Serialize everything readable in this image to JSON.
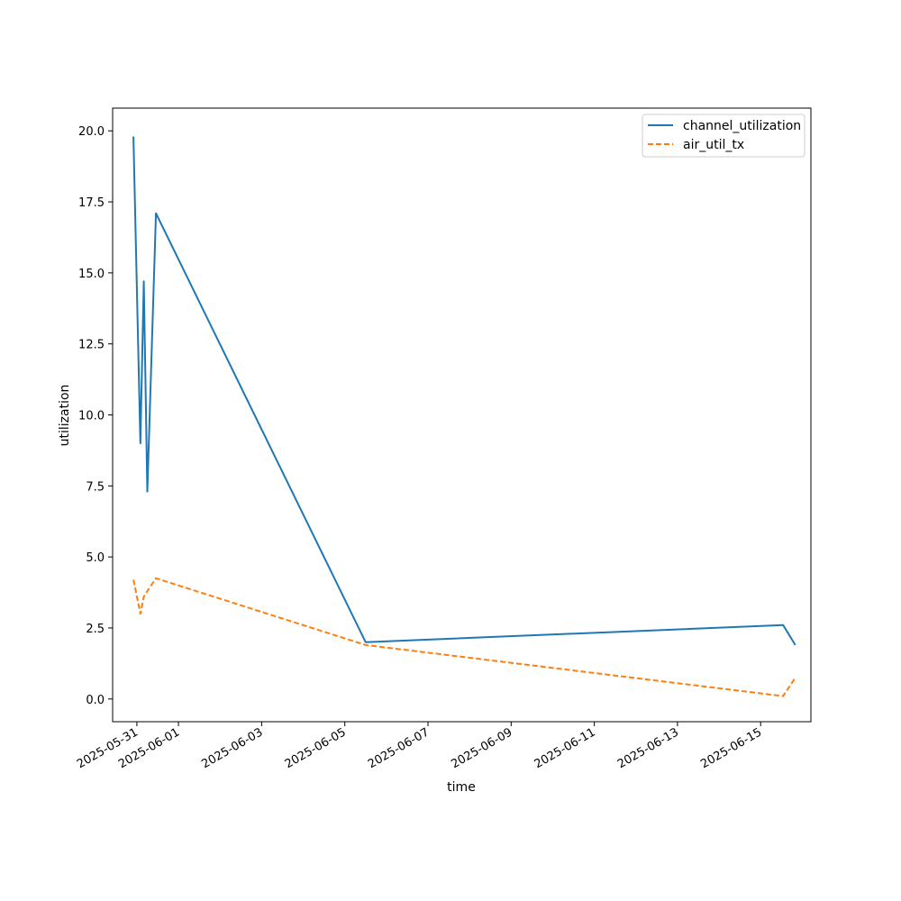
{
  "chart_data": {
    "type": "line",
    "title": "",
    "xlabel": "time",
    "ylabel": "utilization",
    "x_scale": "date",
    "xlim": [
      "2025-05-30T10:00",
      "2025-06-16T05:00"
    ],
    "ylim": [
      -0.8,
      20.8
    ],
    "grid": false,
    "legend": "top-right",
    "x_ticks": [
      "2025-05-31",
      "2025-06-01",
      "2025-06-03",
      "2025-06-05",
      "2025-06-07",
      "2025-06-09",
      "2025-06-11",
      "2025-06-13",
      "2025-06-15"
    ],
    "y_ticks": [
      "0.0",
      "2.5",
      "5.0",
      "7.5",
      "10.0",
      "12.5",
      "15.0",
      "17.5",
      "20.0"
    ],
    "series": [
      {
        "name": "channel_utilization",
        "color": "#1f77b4",
        "line_style": "solid",
        "points": [
          {
            "x": "2025-05-30T22:00",
            "y": 19.8
          },
          {
            "x": "2025-05-31T02:00",
            "y": 9.0
          },
          {
            "x": "2025-05-31T04:00",
            "y": 14.7
          },
          {
            "x": "2025-05-31T06:00",
            "y": 7.3
          },
          {
            "x": "2025-05-31T11:00",
            "y": 17.1
          },
          {
            "x": "2025-06-05T12:00",
            "y": 2.0
          },
          {
            "x": "2025-06-15T13:00",
            "y": 2.6
          },
          {
            "x": "2025-06-15T20:00",
            "y": 1.9
          }
        ]
      },
      {
        "name": "air_util_tx",
        "color": "#ff7f0e",
        "line_style": "dashed",
        "points": [
          {
            "x": "2025-05-30T22:00",
            "y": 4.2
          },
          {
            "x": "2025-05-31T02:00",
            "y": 3.0
          },
          {
            "x": "2025-05-31T04:00",
            "y": 3.6
          },
          {
            "x": "2025-05-31T06:00",
            "y": 3.8
          },
          {
            "x": "2025-05-31T11:00",
            "y": 4.25
          },
          {
            "x": "2025-06-05T12:00",
            "y": 1.9
          },
          {
            "x": "2025-06-15T13:00",
            "y": 0.1
          },
          {
            "x": "2025-06-15T20:00",
            "y": 0.75
          }
        ]
      }
    ]
  }
}
